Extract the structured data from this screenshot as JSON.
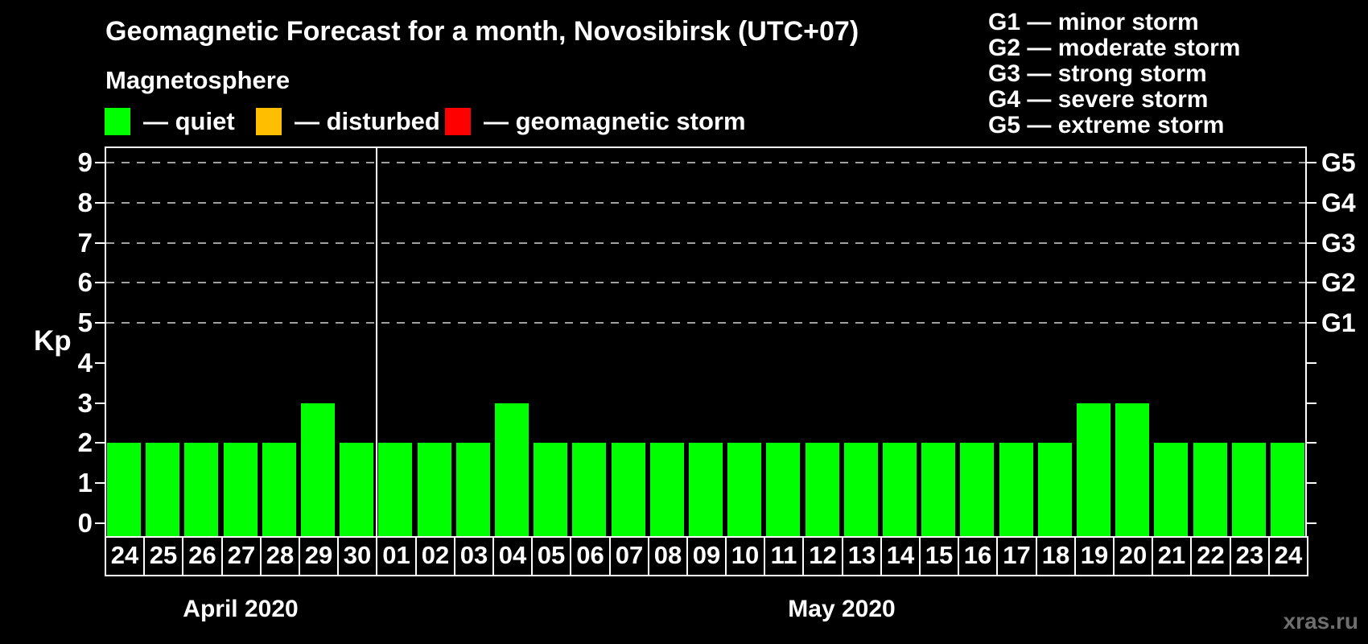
{
  "title": "Geomagnetic Forecast for a month, Novosibirsk (UTC+07)",
  "magnetosphere": {
    "heading": "Magnetosphere",
    "legend": [
      {
        "name": "quiet",
        "label": "— quiet",
        "color": "#00ff00"
      },
      {
        "name": "disturbed",
        "label": "— disturbed",
        "color": "#ffbf00"
      },
      {
        "name": "geomagnetic-storm",
        "label": "— geomagnetic storm",
        "color": "#ff0000"
      }
    ]
  },
  "storm_scale_legend": {
    "lines": [
      "G1 — minor storm",
      "G2 — moderate storm",
      "G3 — strong storm",
      "G4 — severe storm",
      "G5 — extreme storm"
    ]
  },
  "watermark": "xras.ru",
  "chart_data": {
    "type": "bar",
    "title": "Geomagnetic Forecast for a month, Novosibirsk (UTC+07)",
    "ylabel": "Kp",
    "ylim": [
      0,
      9
    ],
    "yticks": [
      0,
      1,
      2,
      3,
      4,
      5,
      6,
      7,
      8,
      9
    ],
    "gridlines_kp": [
      5,
      6,
      7,
      8,
      9
    ],
    "grid_style": "dashed",
    "grid_color": "#a0a0a0",
    "axis_color": "#ffffff",
    "bar_color": "#00ff00",
    "right_axis": [
      {
        "label": "G1",
        "kp": 5
      },
      {
        "label": "G2",
        "kp": 6
      },
      {
        "label": "G3",
        "kp": 7
      },
      {
        "label": "G4",
        "kp": 8
      },
      {
        "label": "G5",
        "kp": 9
      }
    ],
    "categories": [
      "24",
      "25",
      "26",
      "27",
      "28",
      "29",
      "30",
      "01",
      "02",
      "03",
      "04",
      "05",
      "06",
      "07",
      "08",
      "09",
      "10",
      "11",
      "12",
      "13",
      "14",
      "15",
      "16",
      "17",
      "18",
      "19",
      "20",
      "21",
      "22",
      "23",
      "24"
    ],
    "values": [
      2,
      2,
      2,
      2,
      2,
      3,
      2,
      2,
      2,
      2,
      3,
      2,
      2,
      2,
      2,
      2,
      2,
      2,
      2,
      2,
      2,
      2,
      2,
      2,
      2,
      3,
      3,
      2,
      2,
      2,
      2
    ],
    "months": [
      {
        "label": "April 2020",
        "start": 0,
        "count": 7
      },
      {
        "label": "May 2020",
        "start": 7,
        "count": 24
      }
    ]
  }
}
